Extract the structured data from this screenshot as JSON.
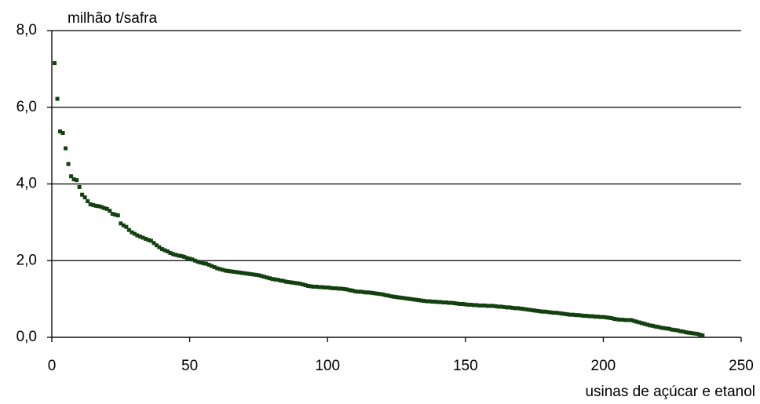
{
  "chart_data": {
    "type": "scatter",
    "title": "milhão t/safra",
    "x_label": "usinas de açúcar e etanol",
    "color": "#12400f",
    "grid": true,
    "xlim": [
      0,
      250
    ],
    "xticks": [
      0,
      50,
      100,
      150,
      200,
      250
    ],
    "ylim": [
      0,
      8
    ],
    "yticks": [
      {
        "value": 0,
        "label": "0,0"
      },
      {
        "value": 2,
        "label": "2,0"
      },
      {
        "value": 4,
        "label": "4,0"
      },
      {
        "value": 6,
        "label": "6,0"
      },
      {
        "value": 8,
        "label": "8,0"
      }
    ],
    "x": [
      1,
      2,
      3,
      4,
      5,
      6,
      7,
      8,
      9,
      10,
      11,
      12,
      13,
      14,
      15,
      16,
      17,
      18,
      19,
      20,
      21,
      22,
      23,
      24,
      25,
      26,
      27,
      28,
      29,
      30,
      31,
      32,
      33,
      34,
      35,
      36,
      37,
      38,
      39,
      40,
      41,
      42,
      43,
      44,
      45,
      46,
      47,
      48,
      49,
      50,
      51,
      52,
      53,
      54,
      55,
      56,
      57,
      58,
      59,
      60,
      61,
      62,
      63,
      64,
      65,
      66,
      67,
      68,
      69,
      70,
      71,
      72,
      73,
      74,
      75,
      76,
      77,
      78,
      79,
      80,
      81,
      82,
      83,
      84,
      85,
      86,
      87,
      88,
      89,
      90,
      91,
      92,
      93,
      94,
      95,
      96,
      97,
      98,
      99,
      100,
      101,
      102,
      103,
      104,
      105,
      106,
      107,
      108,
      109,
      110,
      111,
      112,
      113,
      114,
      115,
      116,
      117,
      118,
      119,
      120,
      121,
      122,
      123,
      124,
      125,
      126,
      127,
      128,
      129,
      130,
      131,
      132,
      133,
      134,
      135,
      136,
      137,
      138,
      139,
      140,
      141,
      142,
      143,
      144,
      145,
      146,
      147,
      148,
      149,
      150,
      151,
      152,
      153,
      154,
      155,
      156,
      157,
      158,
      159,
      160,
      161,
      162,
      163,
      164,
      165,
      166,
      167,
      168,
      169,
      170,
      171,
      172,
      173,
      174,
      175,
      176,
      177,
      178,
      179,
      180,
      181,
      182,
      183,
      184,
      185,
      186,
      187,
      188,
      189,
      190,
      191,
      192,
      193,
      194,
      195,
      196,
      197,
      198,
      199,
      200,
      201,
      202,
      203,
      204,
      205,
      206,
      207,
      208,
      209,
      210,
      211,
      212,
      213,
      214,
      215,
      216,
      217,
      218,
      219,
      220,
      221,
      222,
      223,
      224,
      225,
      226,
      227,
      228,
      229,
      230,
      231,
      232,
      233,
      234,
      235,
      236
    ],
    "values": [
      7.15,
      6.22,
      5.37,
      5.33,
      4.93,
      4.52,
      4.2,
      4.12,
      4.1,
      3.92,
      3.72,
      3.65,
      3.55,
      3.47,
      3.45,
      3.43,
      3.42,
      3.4,
      3.37,
      3.35,
      3.3,
      3.22,
      3.2,
      3.18,
      2.97,
      2.92,
      2.88,
      2.8,
      2.74,
      2.7,
      2.66,
      2.63,
      2.6,
      2.57,
      2.54,
      2.52,
      2.46,
      2.4,
      2.35,
      2.3,
      2.27,
      2.24,
      2.2,
      2.17,
      2.15,
      2.13,
      2.12,
      2.1,
      2.07,
      2.05,
      2.03,
      2.0,
      1.97,
      1.95,
      1.93,
      1.92,
      1.89,
      1.86,
      1.83,
      1.8,
      1.78,
      1.76,
      1.74,
      1.73,
      1.72,
      1.71,
      1.7,
      1.69,
      1.68,
      1.67,
      1.66,
      1.65,
      1.64,
      1.63,
      1.62,
      1.6,
      1.58,
      1.56,
      1.54,
      1.52,
      1.51,
      1.5,
      1.48,
      1.47,
      1.45,
      1.44,
      1.43,
      1.42,
      1.41,
      1.4,
      1.38,
      1.36,
      1.34,
      1.33,
      1.32,
      1.32,
      1.31,
      1.31,
      1.3,
      1.3,
      1.29,
      1.28,
      1.28,
      1.27,
      1.27,
      1.26,
      1.25,
      1.23,
      1.22,
      1.2,
      1.19,
      1.19,
      1.18,
      1.17,
      1.17,
      1.16,
      1.15,
      1.14,
      1.13,
      1.12,
      1.1,
      1.09,
      1.07,
      1.06,
      1.05,
      1.04,
      1.03,
      1.02,
      1.01,
      1.0,
      0.99,
      0.98,
      0.97,
      0.96,
      0.95,
      0.94,
      0.94,
      0.93,
      0.93,
      0.92,
      0.92,
      0.91,
      0.91,
      0.9,
      0.9,
      0.89,
      0.88,
      0.87,
      0.87,
      0.86,
      0.85,
      0.85,
      0.84,
      0.84,
      0.83,
      0.83,
      0.83,
      0.82,
      0.82,
      0.82,
      0.81,
      0.8,
      0.8,
      0.79,
      0.78,
      0.78,
      0.77,
      0.76,
      0.76,
      0.75,
      0.74,
      0.73,
      0.72,
      0.71,
      0.7,
      0.69,
      0.68,
      0.67,
      0.67,
      0.66,
      0.65,
      0.64,
      0.64,
      0.63,
      0.62,
      0.61,
      0.6,
      0.59,
      0.59,
      0.58,
      0.58,
      0.57,
      0.56,
      0.56,
      0.55,
      0.55,
      0.54,
      0.54,
      0.53,
      0.53,
      0.52,
      0.51,
      0.5,
      0.48,
      0.47,
      0.46,
      0.46,
      0.45,
      0.45,
      0.45,
      0.43,
      0.41,
      0.39,
      0.37,
      0.35,
      0.33,
      0.31,
      0.3,
      0.28,
      0.27,
      0.25,
      0.24,
      0.23,
      0.22,
      0.2,
      0.19,
      0.18,
      0.16,
      0.15,
      0.13,
      0.12,
      0.11,
      0.1,
      0.09,
      0.07,
      0.05
    ]
  }
}
